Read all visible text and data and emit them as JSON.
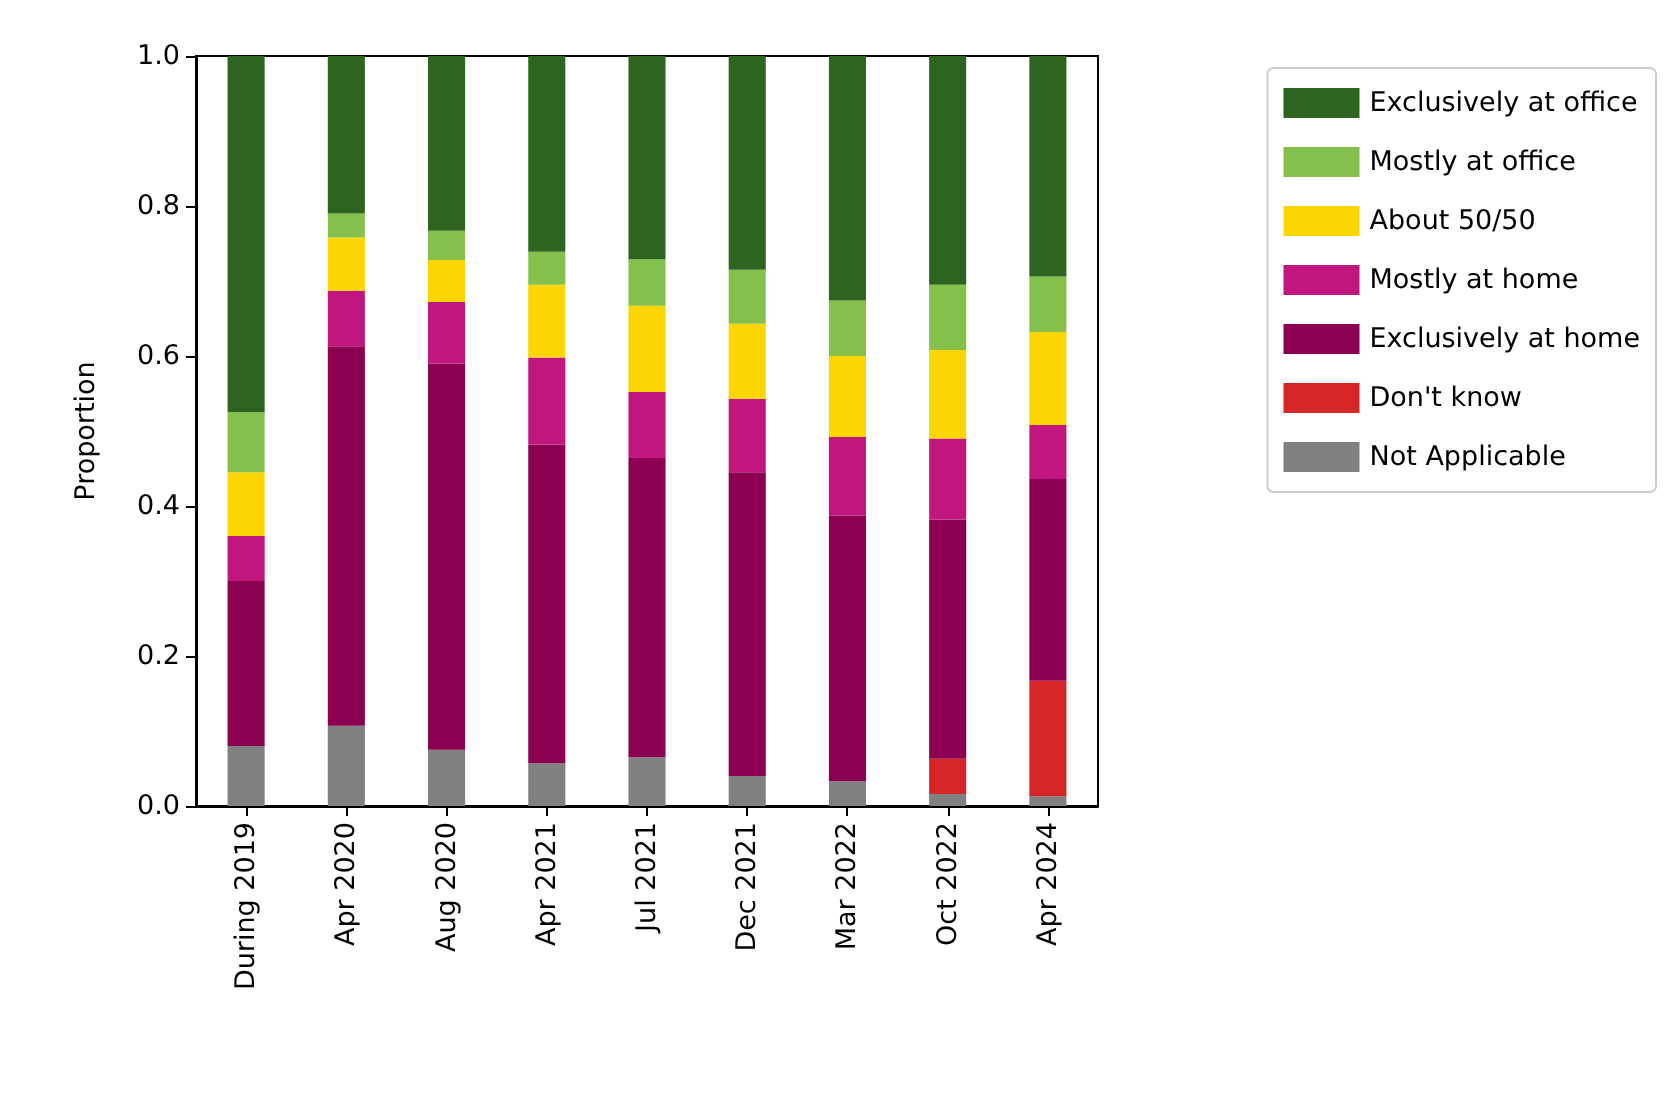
{
  "chart_data": {
    "type": "bar",
    "stacked": true,
    "ylabel": "Proportion",
    "categories": [
      "During 2019",
      "Apr 2020",
      "Aug 2020",
      "Apr 2021",
      "Jul 2021",
      "Dec 2021",
      "Mar 2022",
      "Oct 2022",
      "Apr 2024"
    ],
    "series": [
      {
        "name": "Not Applicable",
        "color": "#808080",
        "values": [
          0.08,
          0.107,
          0.075,
          0.057,
          0.065,
          0.04,
          0.033,
          0.016,
          0.013
        ]
      },
      {
        "name": "Don't know",
        "color": "#d62728",
        "values": [
          0,
          0,
          0,
          0,
          0,
          0,
          0,
          0.047,
          0.154
        ]
      },
      {
        "name": "Exclusively at home",
        "color": "#8b0050",
        "values": [
          0.22,
          0.506,
          0.515,
          0.425,
          0.399,
          0.405,
          0.354,
          0.319,
          0.269
        ]
      },
      {
        "name": "Mostly at home",
        "color": "#c2167f",
        "values": [
          0.06,
          0.074,
          0.082,
          0.116,
          0.088,
          0.098,
          0.105,
          0.108,
          0.072
        ]
      },
      {
        "name": "About 50/50",
        "color": "#fdd500",
        "values": [
          0.085,
          0.071,
          0.056,
          0.097,
          0.115,
          0.1,
          0.108,
          0.118,
          0.124
        ]
      },
      {
        "name": "Mostly at office",
        "color": "#84c04b",
        "values": [
          0.08,
          0.032,
          0.039,
          0.044,
          0.062,
          0.072,
          0.074,
          0.087,
          0.074
        ]
      },
      {
        "name": "Exclusively at office",
        "color": "#2c6420",
        "values": [
          0.475,
          0.21,
          0.233,
          0.261,
          0.271,
          0.285,
          0.326,
          0.305,
          0.294
        ]
      }
    ],
    "ylim": [
      0,
      1
    ],
    "yticks": [
      {
        "value": 0,
        "label": "0.0"
      },
      {
        "value": 0.2,
        "label": "0.2"
      },
      {
        "value": 0.4,
        "label": "0.4"
      },
      {
        "value": 0.6,
        "label": "0.6"
      },
      {
        "value": 0.8,
        "label": "0.8"
      },
      {
        "value": 1,
        "label": "1.0"
      }
    ],
    "grid": false,
    "legend": "top right"
  }
}
